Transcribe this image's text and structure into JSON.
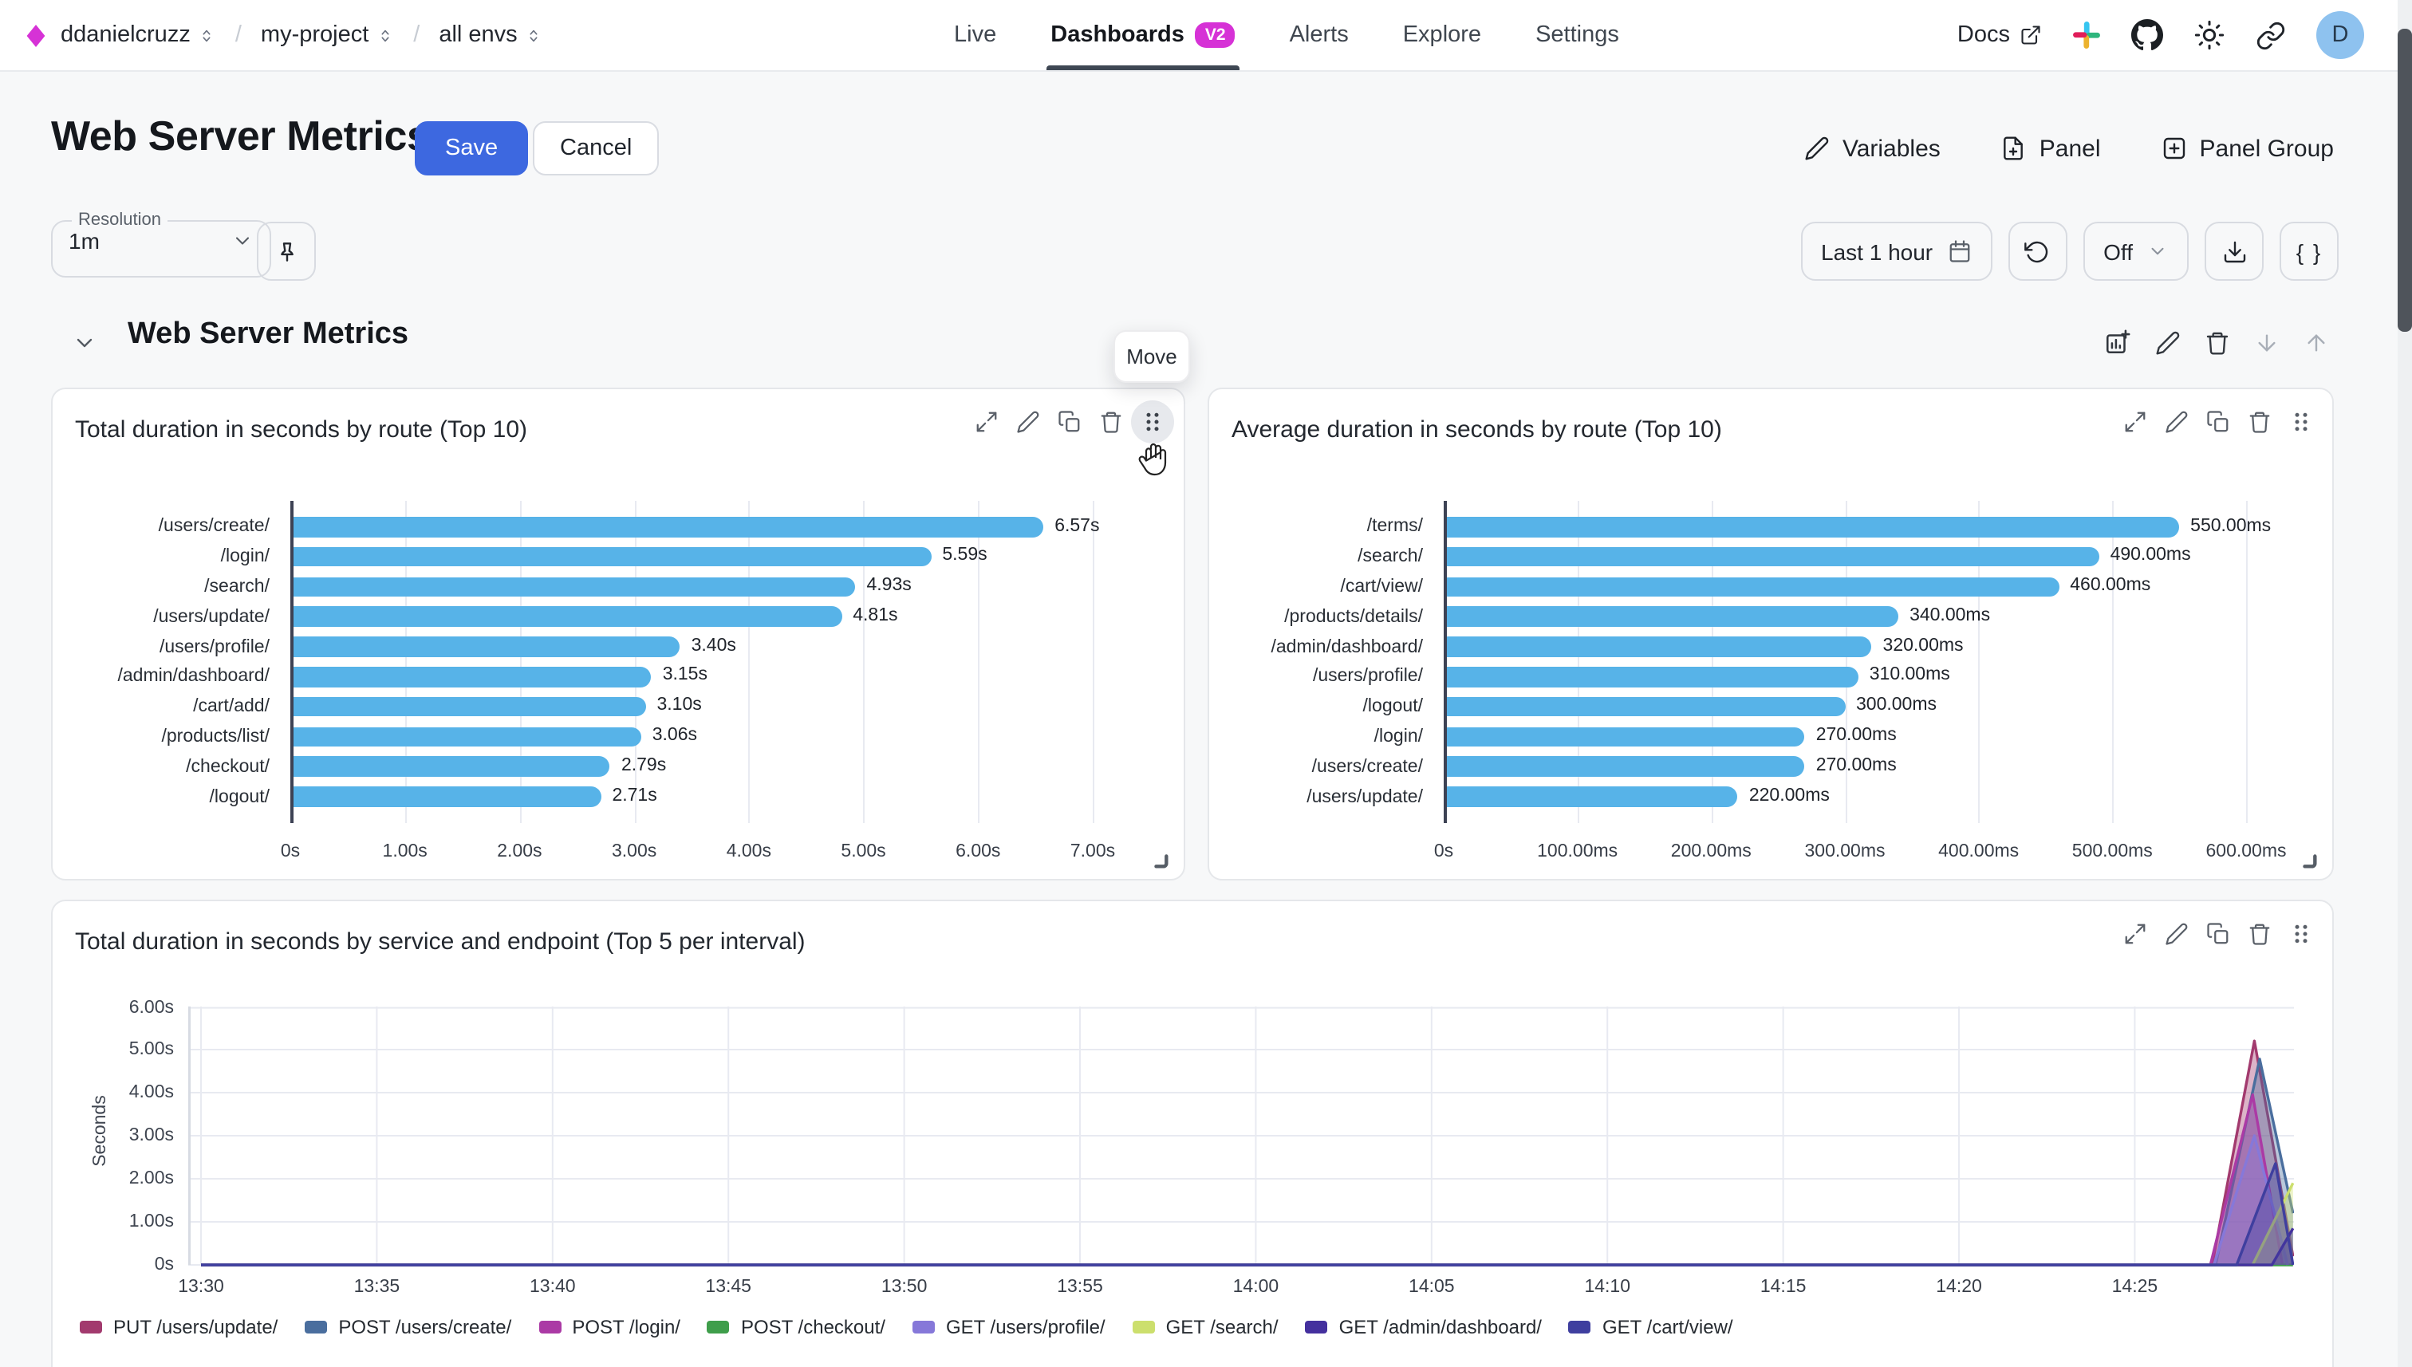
{
  "nav": {
    "breadcrumb": [
      {
        "label": "ddanielcruzz"
      },
      {
        "label": "my-project"
      },
      {
        "label": "all envs"
      }
    ],
    "breadcrumb_separator": "/",
    "tabs": [
      {
        "label": "Live"
      },
      {
        "label": "Dashboards",
        "badge": "V2",
        "active": true
      },
      {
        "label": "Alerts"
      },
      {
        "label": "Explore"
      },
      {
        "label": "Settings"
      }
    ],
    "docs_label": "Docs",
    "right_icons": [
      "external-link",
      "slack",
      "github",
      "light-theme",
      "copy-link"
    ],
    "avatar_initial": "D"
  },
  "header": {
    "title": "Web Server Metrics",
    "save_label": "Save",
    "cancel_label": "Cancel",
    "actions": [
      {
        "label": "Variables",
        "icon": "pencil"
      },
      {
        "label": "Panel",
        "icon": "file-plus"
      },
      {
        "label": "Panel Group",
        "icon": "square-plus"
      }
    ]
  },
  "toolbar": {
    "resolution_label": "Resolution",
    "resolution_value": "1m",
    "pin_icon": "pin",
    "time_range_label": "Last 1 hour",
    "refresh_icon": "refresh",
    "auto_refresh_value": "Off",
    "download_icon": "download",
    "query_json_label": "{ }"
  },
  "section": {
    "title": "Web Server Metrics",
    "move_tooltip": "Move",
    "icons": [
      "add-panel",
      "edit",
      "delete",
      "move-down",
      "move-up"
    ]
  },
  "panel_icons": [
    "expand",
    "edit",
    "duplicate",
    "delete",
    "drag-handle"
  ],
  "colors": {
    "accent_blue": "#3d68e0",
    "brand_magenta": "#d632d6",
    "bar_blue": "#57b3e8"
  },
  "chart_data": [
    {
      "type": "bar",
      "orientation": "horizontal",
      "title": "Total duration in seconds by route (Top 10)",
      "categories": [
        "/users/create/",
        "/login/",
        "/search/",
        "/users/update/",
        "/users/profile/",
        "/admin/dashboard/",
        "/cart/add/",
        "/products/list/",
        "/checkout/",
        "/logout/"
      ],
      "values": [
        6.57,
        5.59,
        4.93,
        4.81,
        3.4,
        3.15,
        3.1,
        3.06,
        2.79,
        2.71
      ],
      "value_labels": [
        "6.57s",
        "5.59s",
        "4.93s",
        "4.81s",
        "3.40s",
        "3.15s",
        "3.10s",
        "3.06s",
        "2.79s",
        "2.71s"
      ],
      "xticks": [
        "0s",
        "1.00s",
        "2.00s",
        "3.00s",
        "4.00s",
        "5.00s",
        "6.00s",
        "7.00s"
      ],
      "xlim": [
        0,
        7
      ],
      "bar_color": "#57b3e8",
      "grid": true
    },
    {
      "type": "bar",
      "orientation": "horizontal",
      "title": "Average duration in seconds by route (Top 10)",
      "categories": [
        "/terms/",
        "/search/",
        "/cart/view/",
        "/products/details/",
        "/admin/dashboard/",
        "/users/profile/",
        "/logout/",
        "/login/",
        "/users/create/",
        "/users/update/"
      ],
      "values": [
        550,
        490,
        460,
        340,
        320,
        310,
        300,
        270,
        270,
        220
      ],
      "value_labels": [
        "550.00ms",
        "490.00ms",
        "460.00ms",
        "340.00ms",
        "320.00ms",
        "310.00ms",
        "300.00ms",
        "270.00ms",
        "270.00ms",
        "220.00ms"
      ],
      "xticks": [
        "0s",
        "100.00ms",
        "200.00ms",
        "300.00ms",
        "400.00ms",
        "500.00ms",
        "600.00ms"
      ],
      "xlim": [
        0,
        600
      ],
      "bar_color": "#57b3e8",
      "grid": true
    },
    {
      "type": "area",
      "title": "Total duration in seconds by service and endpoint (Top 5 per interval)",
      "ylabel": "Seconds",
      "yticks": [
        "6.00s",
        "5.00s",
        "4.00s",
        "3.00s",
        "2.00s",
        "1.00s",
        "0s"
      ],
      "ylim": [
        0,
        6
      ],
      "xticks": [
        "13:30",
        "13:35",
        "13:40",
        "13:45",
        "13:50",
        "13:55",
        "14:00",
        "14:05",
        "14:10",
        "14:15",
        "14:20",
        "14:25"
      ],
      "x_minutes_range": [
        0,
        59.5
      ],
      "grid": true,
      "legend_position": "bottom",
      "series": [
        {
          "name": "PUT /users/update/",
          "color": "#a23a6e",
          "points": [
            [
              0,
              0
            ],
            [
              57.2,
              0
            ],
            [
              58.4,
              5.2
            ],
            [
              59.5,
              0.2
            ]
          ]
        },
        {
          "name": "POST /users/create/",
          "color": "#4a6e9e",
          "points": [
            [
              0,
              0
            ],
            [
              57.3,
              0
            ],
            [
              58.55,
              4.78
            ],
            [
              59.5,
              1.2
            ]
          ]
        },
        {
          "name": "POST /login/",
          "color": "#ab3aa5",
          "points": [
            [
              0,
              0
            ],
            [
              57.15,
              0
            ],
            [
              58.35,
              3.95
            ],
            [
              59.2,
              0
            ]
          ]
        },
        {
          "name": "POST /checkout/",
          "color": "#3f9e4b",
          "points": [
            [
              0,
              0
            ],
            [
              59.5,
              0
            ]
          ]
        },
        {
          "name": "GET /users/profile/",
          "color": "#8678d9",
          "points": [
            [
              0,
              0
            ],
            [
              57.25,
              0
            ],
            [
              58.4,
              3.0
            ],
            [
              59.35,
              0
            ]
          ]
        },
        {
          "name": "GET /search/",
          "color": "#ccdf6d",
          "points": [
            [
              0,
              0
            ],
            [
              58.35,
              0
            ],
            [
              59.5,
              1.9
            ]
          ]
        },
        {
          "name": "GET /admin/dashboard/",
          "color": "#44309e",
          "points": [
            [
              0,
              0
            ],
            [
              58.9,
              0
            ],
            [
              59.5,
              0.85
            ]
          ]
        },
        {
          "name": "GET /cart/view/",
          "color": "#3f3f9f",
          "points": [
            [
              0,
              0
            ],
            [
              57.9,
              0
            ],
            [
              59.0,
              2.35
            ],
            [
              59.5,
              0
            ]
          ]
        }
      ]
    }
  ]
}
